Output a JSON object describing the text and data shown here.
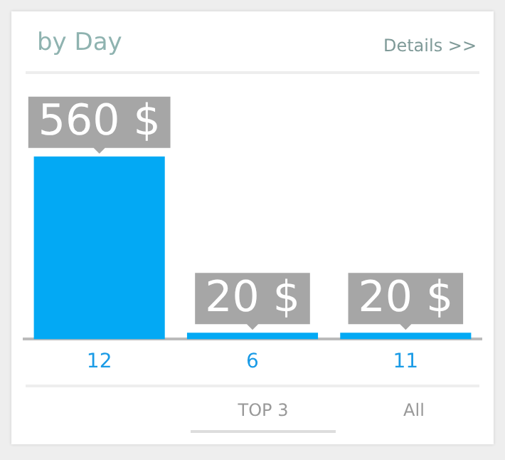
{
  "chart_data": {
    "type": "bar",
    "title": "by Day",
    "categories": [
      "12",
      "6",
      "11"
    ],
    "values": [
      560,
      20,
      20
    ],
    "color": "#03a9f4",
    "value_labels": [
      "560 $",
      "20 $",
      "20 $"
    ],
    "annotations": [
      "Details >>",
      "TOP 3",
      "All"
    ],
    "grid": false,
    "legend": false
  }
}
